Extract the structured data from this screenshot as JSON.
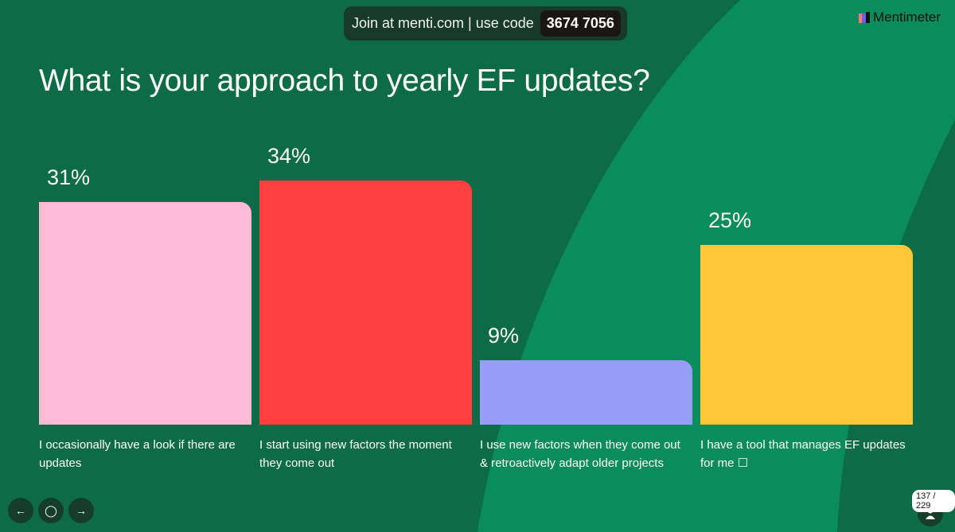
{
  "header": {
    "join_text": "Join at menti.com | use code",
    "code": "3674 7056",
    "brand": "Mentimeter"
  },
  "title": "What is your approach to yearly EF updates?",
  "chart_data": {
    "type": "bar",
    "title": "What is your approach to yearly EF updates?",
    "categories": [
      "I occasionally have a look if there are updates",
      "I start using new factors the moment they come out",
      "I use new factors when they come out & retroactively adapt older projects",
      "I have a tool that manages EF updates for me ☐"
    ],
    "values": [
      31,
      34,
      9,
      25
    ],
    "value_labels": [
      "31%",
      "34%",
      "9%",
      "25%"
    ],
    "colors": [
      "#ffbad4",
      "#ff403f",
      "#979efa",
      "#ffc736"
    ],
    "grid": false
  },
  "footer": {
    "counter": "137 / 229"
  }
}
